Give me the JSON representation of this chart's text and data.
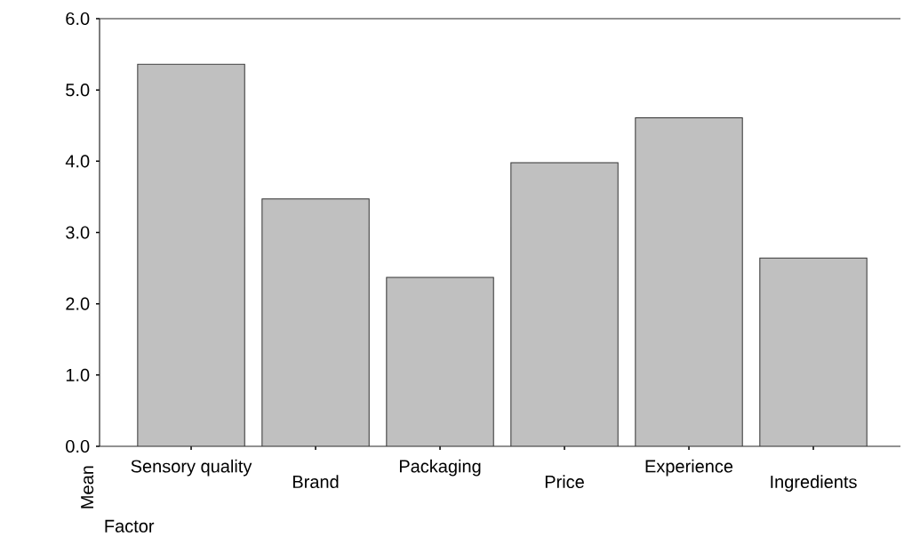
{
  "chart_data": {
    "type": "bar",
    "xlabel": "Factor",
    "ylabel": "Mean",
    "categories": [
      "Sensory quality",
      "Brand",
      "Packaging",
      "Price",
      "Experience",
      "Ingredients"
    ],
    "values": [
      5.36,
      3.47,
      2.37,
      3.98,
      4.61,
      2.64
    ],
    "color": "#c0c0c0",
    "ylim": [
      0,
      6
    ],
    "yticks": [
      {
        "value": 0,
        "label": "0.0"
      },
      {
        "value": 1,
        "label": "1.0"
      },
      {
        "value": 2,
        "label": "2.0"
      },
      {
        "value": 3,
        "label": "3.0"
      },
      {
        "value": 4,
        "label": "4.0"
      },
      {
        "value": 5,
        "label": "5.0"
      },
      {
        "value": 6,
        "label": "6.0"
      }
    ]
  }
}
